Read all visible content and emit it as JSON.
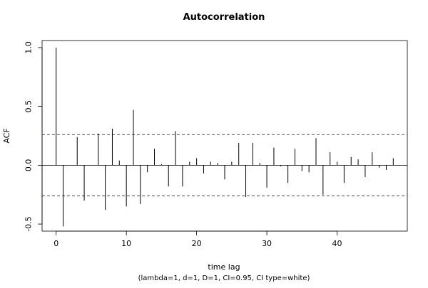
{
  "chart_data": {
    "type": "bar",
    "title": "Autocorrelation",
    "xlabel": "time lag",
    "subtitle": "(lambda=1, d=1, D=1, CI=0.95, CI type=white)",
    "ylabel": "ACF",
    "x": [
      0,
      1,
      2,
      3,
      4,
      5,
      6,
      7,
      8,
      9,
      10,
      11,
      12,
      13,
      14,
      15,
      16,
      17,
      18,
      19,
      20,
      21,
      22,
      23,
      24,
      25,
      26,
      27,
      28,
      29,
      30,
      31,
      32,
      33,
      34,
      35,
      36,
      37,
      38,
      39,
      40,
      41,
      42,
      43,
      44,
      45,
      46,
      47,
      48
    ],
    "values": [
      1.0,
      -0.52,
      0.0,
      0.24,
      -0.3,
      0.0,
      0.27,
      -0.38,
      0.31,
      0.04,
      -0.35,
      0.47,
      -0.33,
      -0.06,
      0.14,
      0.01,
      -0.18,
      0.29,
      -0.18,
      0.03,
      0.06,
      -0.07,
      0.03,
      0.02,
      -0.12,
      0.03,
      0.19,
      -0.27,
      0.19,
      0.02,
      -0.19,
      0.15,
      -0.01,
      -0.15,
      0.14,
      -0.05,
      -0.06,
      0.23,
      -0.25,
      0.11,
      0.03,
      -0.15,
      0.07,
      0.05,
      -0.1,
      0.11,
      -0.02,
      -0.04,
      0.06
    ],
    "ci": 0.26,
    "xlim": [
      -2,
      50
    ],
    "ylim": [
      -0.56,
      1.06
    ],
    "xticks": [
      0,
      10,
      20,
      30,
      40
    ],
    "xtick_labels": [
      "0",
      "10",
      "20",
      "30",
      "40"
    ],
    "yticks": [
      -0.5,
      0.0,
      0.5,
      1.0
    ],
    "ytick_labels": [
      "-0.5",
      "0.0",
      "0.5",
      "1.0"
    ],
    "ci_color": "#3333cc",
    "bar_color": "#000000",
    "grid": false,
    "legend": "none"
  }
}
